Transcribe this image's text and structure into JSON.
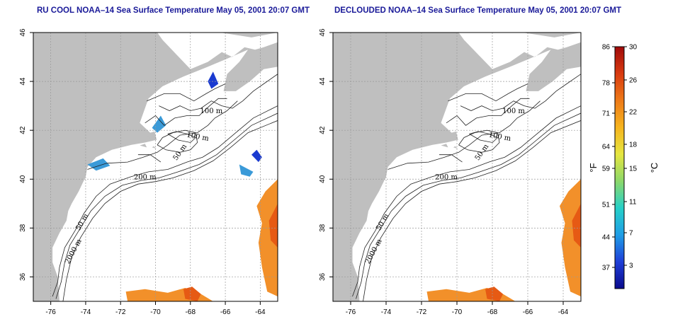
{
  "panels": [
    {
      "title": "RU COOL NOAA–14 Sea Surface Temperature May 05, 2001 20:07 GMT",
      "variant": "raw"
    },
    {
      "title": "DECLOUDED NOAA–14 Sea Surface Temperature May 05, 2001 20:07 GMT",
      "variant": "declouded"
    }
  ],
  "axes": {
    "lon_range": [
      -77,
      -63
    ],
    "lat_range": [
      35,
      46
    ],
    "lon_ticks": [
      "-76",
      "-74",
      "-72",
      "-70",
      "-68",
      "-66",
      "-64"
    ],
    "lat_ticks": [
      "36",
      "38",
      "40",
      "42",
      "44",
      "46"
    ]
  },
  "isobath_labels": [
    "100 m",
    "100 m",
    "50 m",
    "200 m",
    "50 m",
    "2000 m"
  ],
  "colorbar": {
    "fahrenheit_ticks": [
      "86",
      "78",
      "71",
      "64",
      "59",
      "51",
      "44",
      "37"
    ],
    "celsius_ticks": [
      "30",
      "26",
      "22",
      "18",
      "15",
      "11",
      "7",
      "3"
    ],
    "left_unit": "°F",
    "right_unit": "°C",
    "colors": [
      "#0a0a8c",
      "#1f3fd8",
      "#1f9ee6",
      "#26d0c8",
      "#8cd86a",
      "#e6e640",
      "#f6b41e",
      "#ee7a18",
      "#d83a10",
      "#a00a0a"
    ]
  },
  "colors": {
    "land": "#bfbfbf",
    "warm_water": "#f2902a",
    "hot_water": "#e65a14",
    "cool_water": "#3a9ad8",
    "cold_water": "#1a3ad0",
    "title": "#1a1a99"
  }
}
